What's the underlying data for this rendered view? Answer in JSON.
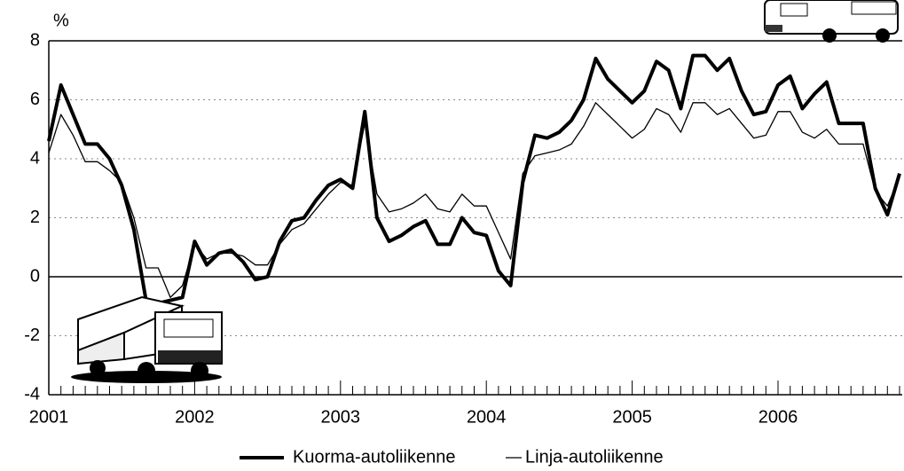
{
  "chart_data": {
    "type": "line",
    "y_label": "%",
    "categories": [
      "2001",
      null,
      null,
      null,
      null,
      null,
      null,
      null,
      null,
      null,
      null,
      null,
      "2002",
      null,
      null,
      null,
      null,
      null,
      null,
      null,
      null,
      null,
      null,
      null,
      "2003",
      null,
      null,
      null,
      null,
      null,
      null,
      null,
      null,
      null,
      null,
      null,
      "2004",
      null,
      null,
      null,
      null,
      null,
      null,
      null,
      null,
      null,
      null,
      null,
      "2005",
      null,
      null,
      null,
      null,
      null,
      null,
      null,
      null,
      null,
      null,
      null,
      "2006",
      null,
      null,
      null,
      null,
      null,
      null,
      null,
      null,
      null,
      null
    ],
    "series": [
      {
        "name": "Kuorma-autoliikenne",
        "color": "#000000",
        "width": 4,
        "values": [
          4.6,
          6.5,
          5.5,
          4.5,
          4.5,
          4.0,
          3.1,
          1.6,
          -0.8,
          -0.9,
          -0.8,
          -0.7,
          1.2,
          0.4,
          0.8,
          0.9,
          0.5,
          -0.1,
          0.0,
          1.2,
          1.9,
          2.0,
          2.6,
          3.1,
          3.3,
          3.0,
          5.6,
          2.0,
          1.2,
          1.4,
          1.7,
          1.9,
          1.1,
          1.1,
          2.0,
          1.5,
          1.4,
          0.2,
          -0.3,
          3.2,
          4.8,
          4.7,
          4.9,
          5.3,
          6.0,
          7.4,
          6.7,
          6.3,
          5.9,
          6.3,
          7.3,
          7.0,
          5.7,
          7.5,
          7.5,
          7.0,
          7.4,
          6.3,
          5.5,
          5.6,
          6.5,
          6.8,
          5.7,
          6.2,
          6.6,
          5.2,
          5.2,
          5.2,
          3.0,
          2.1,
          3.5
        ]
      },
      {
        "name": "Linja-autoliikenne",
        "color": "#000000",
        "width": 1.3,
        "values": [
          4.2,
          5.5,
          4.8,
          3.9,
          3.9,
          3.6,
          3.2,
          2.0,
          0.3,
          0.3,
          -0.7,
          -0.3,
          1.1,
          0.6,
          0.8,
          0.8,
          0.7,
          0.4,
          0.4,
          1.1,
          1.6,
          1.8,
          2.3,
          2.8,
          3.2,
          3.1,
          5.2,
          2.8,
          2.2,
          2.3,
          2.5,
          2.8,
          2.3,
          2.2,
          2.8,
          2.4,
          2.4,
          1.5,
          0.6,
          3.5,
          4.1,
          4.2,
          4.3,
          4.5,
          5.1,
          5.9,
          5.5,
          5.1,
          4.7,
          5.0,
          5.7,
          5.5,
          4.9,
          5.9,
          5.9,
          5.5,
          5.7,
          5.2,
          4.7,
          4.8,
          5.6,
          5.6,
          4.9,
          4.7,
          5.0,
          4.5,
          4.5,
          4.5,
          2.9,
          2.4,
          3.4
        ]
      }
    ],
    "ylim": [
      -4,
      8
    ],
    "yticks": [
      8,
      6,
      4,
      2,
      0,
      -2,
      -4
    ],
    "grid": true
  }
}
